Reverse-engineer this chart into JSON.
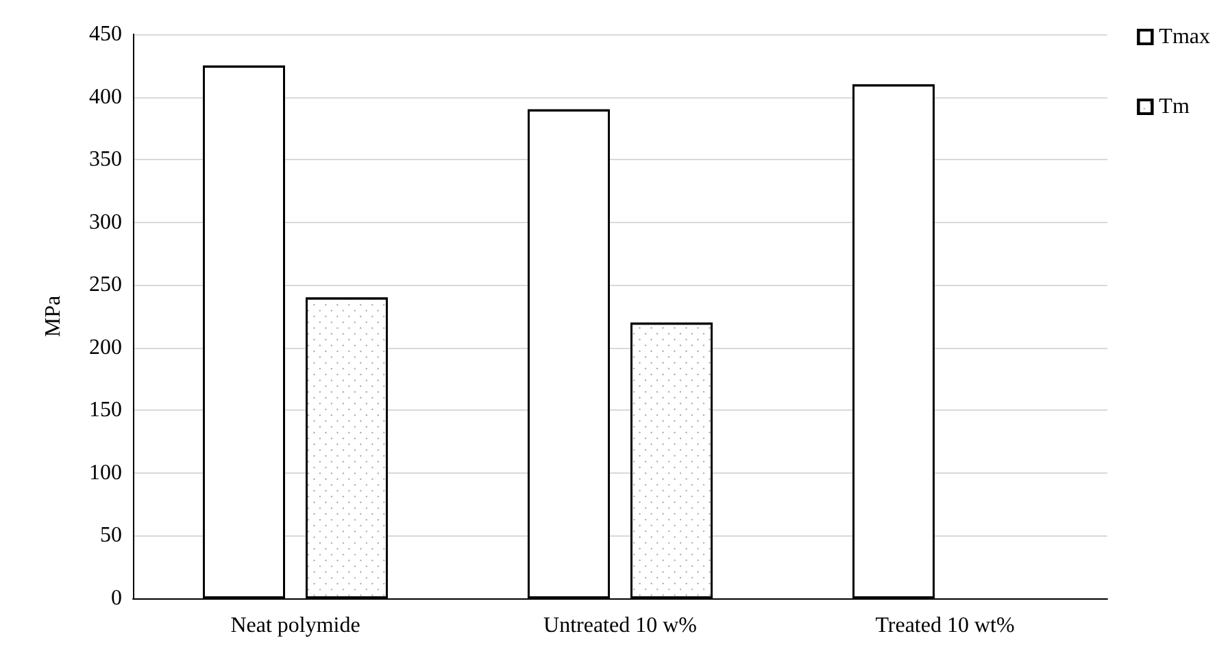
{
  "chart_data": {
    "type": "bar",
    "ylabel": "MPa",
    "categories": [
      "Neat polymide",
      "Untreated 10 w%",
      "Treated 10 wt%"
    ],
    "series": [
      {
        "name": "Tmax",
        "color": "#ffffff",
        "values": [
          425,
          390,
          410
        ]
      },
      {
        "name": "Tm",
        "color": "#ffffff",
        "values": [
          240,
          220,
          null
        ]
      }
    ],
    "ylim": [
      0,
      450
    ],
    "yticks": [
      0,
      50,
      100,
      150,
      200,
      250,
      300,
      350,
      400,
      450
    ],
    "grid": "y",
    "legend": "top right"
  }
}
